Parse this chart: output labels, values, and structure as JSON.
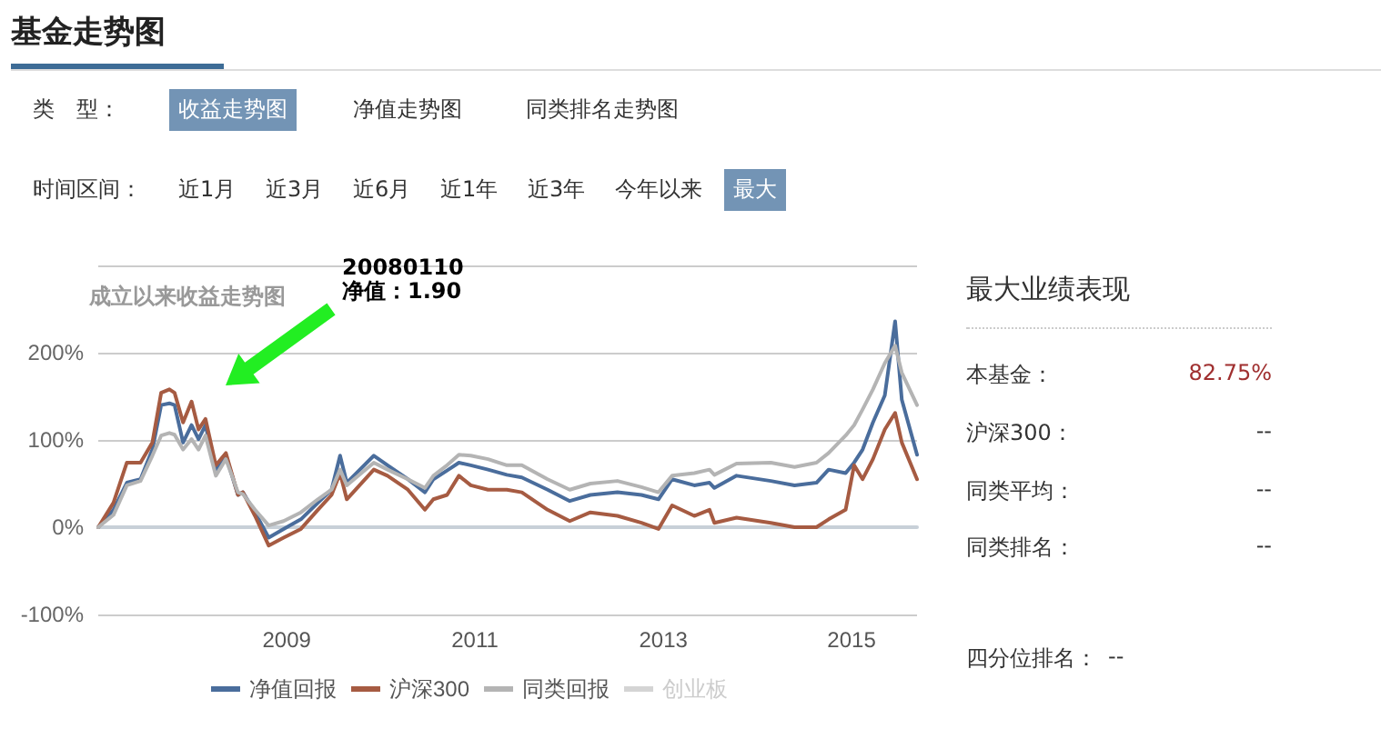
{
  "chart_data": {
    "type": "line",
    "title": "基金走势图",
    "subtitle": "成立以来收益走势图",
    "x": [
      "2007-01-01",
      "2007-03-01",
      "2007-04-22",
      "2007-06-14",
      "2007-07-30",
      "2007-09-02",
      "2007-10-04",
      "2007-10-24",
      "2007-11-26",
      "2007-12-29",
      "2008-01-25",
      "2008-02-21",
      "2008-04-01",
      "2008-05-10",
      "2008-06-26",
      "2008-07-15",
      "2008-08-31",
      "2008-10-23",
      "2008-12-20",
      "2009-02-25",
      "2009-05-02",
      "2009-06-24",
      "2009-07-27",
      "2009-08-22",
      "2009-12-05",
      "2010-01-27",
      "2010-04-16",
      "2010-06-21",
      "2010-07-24",
      "2010-09-15",
      "2010-10-31",
      "2010-12-16",
      "2011-02-21",
      "2011-05-05",
      "2011-07-02",
      "2011-10-10",
      "2012-01-04",
      "2012-03-24",
      "2012-07-07",
      "2012-10-08",
      "2012-12-13",
      "2013-02-04",
      "2013-05-01",
      "2013-06-29",
      "2013-07-18",
      "2013-10-12",
      "2014-02-22",
      "2014-05-25",
      "2014-08-18",
      "2014-10-04",
      "2014-12-09",
      "2015-01-11",
      "2015-02-13",
      "2015-03-25",
      "2015-05-10",
      "2015-06-19",
      "2015-07-15",
      "2015-09-12"
    ],
    "series": [
      {
        "name": "净值回报",
        "color": "#4a6d9c",
        "values": [
          0,
          20,
          51,
          55,
          89,
          140,
          142,
          140,
          97,
          117,
          101,
          117,
          66,
          82,
          37,
          40,
          17,
          -12,
          -2,
          9,
          28,
          43,
          82,
          51,
          82,
          71,
          55,
          40,
          55,
          65,
          74,
          71,
          66,
          60,
          57,
          43,
          30,
          37,
          40,
          37,
          32,
          55,
          48,
          51,
          45,
          59,
          53,
          48,
          51,
          66,
          62,
          74,
          89,
          120,
          151,
          236,
          146,
          83
        ]
      },
      {
        "name": "沪深300",
        "color": "#a65b42",
        "values": [
          0,
          28,
          74,
          74,
          97,
          154,
          158,
          154,
          120,
          144,
          112,
          124,
          71,
          85,
          37,
          40,
          13,
          -21,
          -12,
          -2,
          20,
          37,
          62,
          32,
          66,
          59,
          43,
          20,
          32,
          37,
          59,
          48,
          43,
          43,
          40,
          20,
          7,
          17,
          13,
          5,
          -2,
          25,
          13,
          20,
          5,
          11,
          5,
          0,
          0,
          9,
          20,
          71,
          55,
          78,
          112,
          131,
          97,
          55
        ]
      },
      {
        "name": "同类回报",
        "color": "#b4b4b4",
        "values": [
          0,
          14,
          48,
          53,
          82,
          105,
          108,
          106,
          89,
          101,
          89,
          105,
          59,
          78,
          40,
          38,
          20,
          2,
          7,
          17,
          32,
          43,
          66,
          48,
          74,
          66,
          55,
          45,
          59,
          71,
          83,
          82,
          78,
          71,
          71,
          55,
          43,
          50,
          53,
          46,
          40,
          59,
          62,
          66,
          60,
          73,
          74,
          69,
          74,
          85,
          105,
          117,
          135,
          158,
          188,
          208,
          177,
          140
        ]
      },
      {
        "name": "创业板",
        "color": "#d4d4d4",
        "values": [
          null,
          null,
          null,
          null,
          null,
          null,
          null,
          null,
          null,
          null,
          null,
          null,
          null,
          null,
          null,
          null,
          null,
          null,
          null,
          null,
          null,
          null,
          null,
          null,
          null,
          null,
          null,
          null,
          null,
          null,
          null,
          null,
          null,
          null,
          null,
          null,
          null,
          null,
          null,
          null,
          null,
          null,
          null,
          null,
          null,
          null,
          null,
          null,
          null,
          null,
          null,
          null,
          null,
          null,
          null,
          null,
          null,
          null
        ]
      }
    ],
    "xlim": [
      "2007-01-01",
      "2015-09-12"
    ],
    "xticks": [
      "2009",
      "2011",
      "2013",
      "2015"
    ],
    "ylim": [
      -100,
      300
    ],
    "yticks": [
      {
        "value": -100,
        "label": "-100%"
      },
      {
        "value": 0,
        "label": "0%"
      },
      {
        "value": 100,
        "label": "100%"
      },
      {
        "value": 200,
        "label": "200%"
      },
      {
        "value": 300,
        "label": null
      }
    ],
    "grid": "y",
    "legend": "bottom",
    "marker": "none",
    "line_style": "solid",
    "annotations": [
      "20080110\n净值：1.90",
      "类　型：",
      "收益走势图",
      "净值走势图",
      "同类排名走势图",
      "时间区间：",
      "近1月",
      "近3月",
      "近6月",
      "近1年",
      "近3年",
      "今年以来",
      "最大",
      "最大业绩表现",
      "本基金：",
      "82.75%",
      "沪深300：",
      "--",
      "同类平均：",
      "--",
      "同类排名：",
      "--",
      "四分位排名：",
      "--"
    ]
  }
}
